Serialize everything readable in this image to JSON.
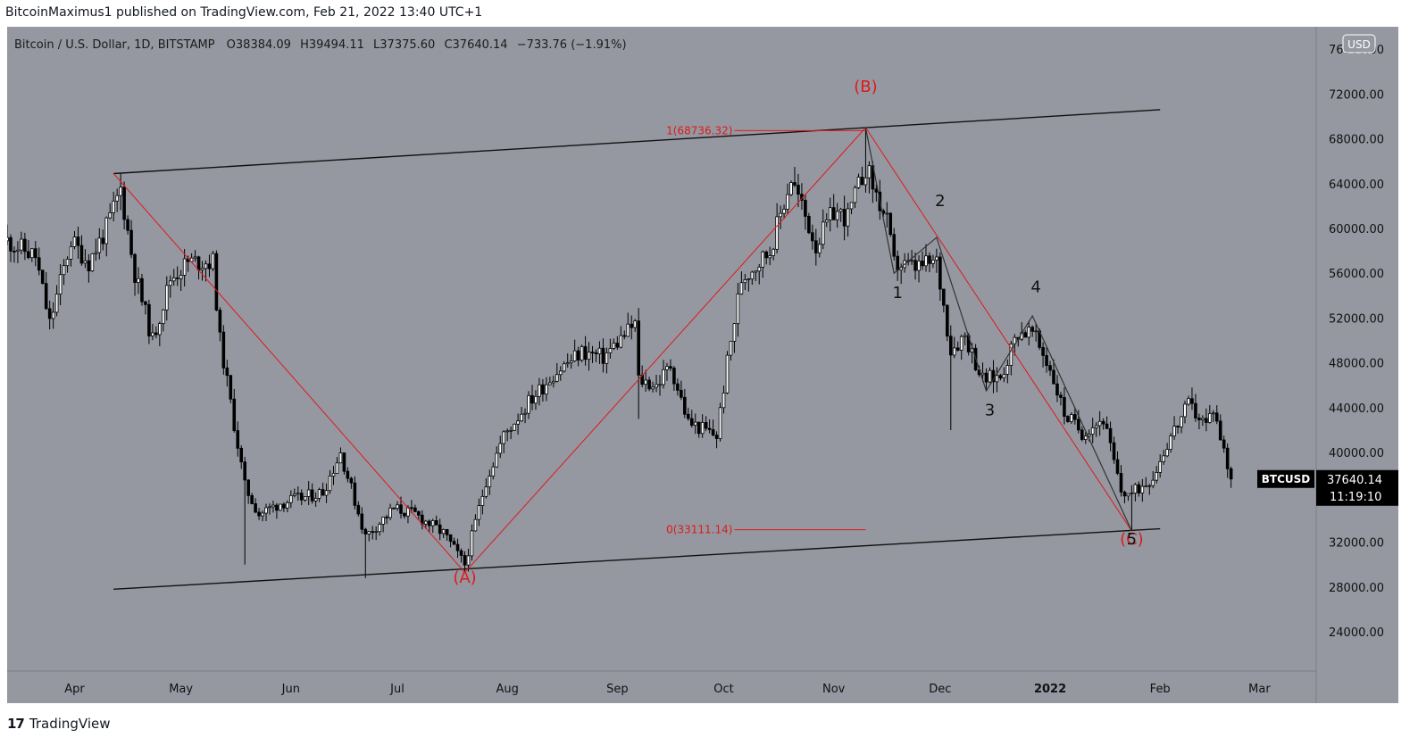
{
  "header": {
    "published_line": "BitcoinMaximus1 published on TradingView.com, Feb 21, 2022 13:40 UTC+1"
  },
  "footer": {
    "logo_mark": "17",
    "brand": "TradingView"
  },
  "colors": {
    "plot_bg": "#9598a1",
    "axis_bg": "#9598a1",
    "candle": "#000000",
    "candle_up_body": "#ffffff",
    "annotation_red": "#e01919",
    "line_black": "#111111",
    "label_bg": "#000000"
  },
  "chart_data": {
    "type": "candlestick",
    "symbol_line": {
      "name": "Bitcoin / U.S. Dollar, 1D, BITSTAMP",
      "o_label": "O",
      "o": "38384.09",
      "h_label": "H",
      "h": "39494.11",
      "l_label": "L",
      "l": "37375.60",
      "c_label": "C",
      "c": "37640.14",
      "change": "−733.76 (−1.91%)"
    },
    "currency_badge": "USD",
    "y_ticks": [
      "76000.00",
      "72000.00",
      "68000.00",
      "64000.00",
      "60000.00",
      "56000.00",
      "52000.00",
      "48000.00",
      "44000.00",
      "40000.00",
      "36000.00",
      "32000.00",
      "28000.00",
      "24000.00"
    ],
    "ylim": [
      20500,
      78000
    ],
    "x_ticks": [
      {
        "date": "2021-04-01",
        "label": "Apr"
      },
      {
        "date": "2021-05-01",
        "label": "May"
      },
      {
        "date": "2021-06-01",
        "label": "Jun"
      },
      {
        "date": "2021-07-01",
        "label": "Jul"
      },
      {
        "date": "2021-08-01",
        "label": "Aug"
      },
      {
        "date": "2021-09-01",
        "label": "Sep"
      },
      {
        "date": "2021-10-01",
        "label": "Oct"
      },
      {
        "date": "2021-11-01",
        "label": "Nov"
      },
      {
        "date": "2021-12-01",
        "label": "Dec"
      },
      {
        "date": "2022-01-01",
        "label": "2022"
      },
      {
        "date": "2022-02-01",
        "label": "Feb"
      },
      {
        "date": "2022-03-01",
        "label": "Mar"
      }
    ],
    "xlim": [
      "2021-03-13",
      "2022-03-17"
    ],
    "price_label": {
      "symbol": "BTCUSD",
      "price": "37640.14",
      "countdown": "11:19:10",
      "value": 37640.14
    },
    "anchors": [
      {
        "date": "2021-03-13",
        "price": 58900
      },
      {
        "date": "2021-03-21",
        "price": 57500
      },
      {
        "date": "2021-03-25",
        "price": 51500
      },
      {
        "date": "2021-03-31",
        "price": 58900
      },
      {
        "date": "2021-04-05",
        "price": 57000
      },
      {
        "date": "2021-04-10",
        "price": 60000
      },
      {
        "date": "2021-04-14",
        "price": 63500
      },
      {
        "date": "2021-04-18",
        "price": 56000
      },
      {
        "date": "2021-04-23",
        "price": 50000
      },
      {
        "date": "2021-04-28",
        "price": 55500
      },
      {
        "date": "2021-05-03",
        "price": 57000
      },
      {
        "date": "2021-05-10",
        "price": 57000
      },
      {
        "date": "2021-05-12",
        "price": 50000
      },
      {
        "date": "2021-05-19",
        "price": 37000
      },
      {
        "date": "2021-05-23",
        "price": 34500
      },
      {
        "date": "2021-05-29",
        "price": 35500
      },
      {
        "date": "2021-06-05",
        "price": 36000
      },
      {
        "date": "2021-06-10",
        "price": 36500
      },
      {
        "date": "2021-06-15",
        "price": 40000
      },
      {
        "date": "2021-06-22",
        "price": 32500
      },
      {
        "date": "2021-06-30",
        "price": 35000
      },
      {
        "date": "2021-07-06",
        "price": 34500
      },
      {
        "date": "2021-07-14",
        "price": 32800
      },
      {
        "date": "2021-07-20",
        "price": 30000
      },
      {
        "date": "2021-07-26",
        "price": 37500
      },
      {
        "date": "2021-07-31",
        "price": 41500
      },
      {
        "date": "2021-08-07",
        "price": 44500
      },
      {
        "date": "2021-08-14",
        "price": 47000
      },
      {
        "date": "2021-08-22",
        "price": 49000
      },
      {
        "date": "2021-08-28",
        "price": 48500
      },
      {
        "date": "2021-09-06",
        "price": 51500
      },
      {
        "date": "2021-09-07",
        "price": 46500
      },
      {
        "date": "2021-09-12",
        "price": 46000
      },
      {
        "date": "2021-09-16",
        "price": 47800
      },
      {
        "date": "2021-09-21",
        "price": 42700
      },
      {
        "date": "2021-09-29",
        "price": 41500
      },
      {
        "date": "2021-10-02",
        "price": 48000
      },
      {
        "date": "2021-10-06",
        "price": 55500
      },
      {
        "date": "2021-10-14",
        "price": 58000
      },
      {
        "date": "2021-10-20",
        "price": 64500
      },
      {
        "date": "2021-10-27",
        "price": 58500
      },
      {
        "date": "2021-11-01",
        "price": 61500
      },
      {
        "date": "2021-11-05",
        "price": 61000
      },
      {
        "date": "2021-11-10",
        "price": 65500
      },
      {
        "date": "2021-11-16",
        "price": 60500
      },
      {
        "date": "2021-11-18",
        "price": 56800
      },
      {
        "date": "2021-11-24",
        "price": 56500
      },
      {
        "date": "2021-11-30",
        "price": 57000
      },
      {
        "date": "2021-12-04",
        "price": 49200
      },
      {
        "date": "2021-12-08",
        "price": 50500
      },
      {
        "date": "2021-12-13",
        "price": 46500
      },
      {
        "date": "2021-12-18",
        "price": 46800
      },
      {
        "date": "2021-12-23",
        "price": 50800
      },
      {
        "date": "2021-12-27",
        "price": 50700
      },
      {
        "date": "2022-01-01",
        "price": 47500
      },
      {
        "date": "2022-01-05",
        "price": 43500
      },
      {
        "date": "2022-01-10",
        "price": 41800
      },
      {
        "date": "2022-01-16",
        "price": 43000
      },
      {
        "date": "2022-01-21",
        "price": 36500
      },
      {
        "date": "2022-01-24",
        "price": 36300
      },
      {
        "date": "2022-01-30",
        "price": 37900
      },
      {
        "date": "2022-02-04",
        "price": 41500
      },
      {
        "date": "2022-02-09",
        "price": 44200
      },
      {
        "date": "2022-02-14",
        "price": 42500
      },
      {
        "date": "2022-02-16",
        "price": 44000
      },
      {
        "date": "2022-02-21",
        "price": 37640
      }
    ],
    "spikes": [
      {
        "date": "2021-04-14",
        "high": 64900
      },
      {
        "date": "2021-05-19",
        "low": 30000
      },
      {
        "date": "2021-06-22",
        "low": 28800
      },
      {
        "date": "2021-07-20",
        "low": 29300
      },
      {
        "date": "2021-09-07",
        "high": 52900,
        "low": 43000
      },
      {
        "date": "2021-11-10",
        "high": 69000
      },
      {
        "date": "2021-12-04",
        "low": 42000
      },
      {
        "date": "2022-01-24",
        "low": 33000
      },
      {
        "date": "2022-02-10",
        "high": 45800
      }
    ],
    "channel_lines": [
      {
        "start": {
          "date": "2021-04-12",
          "price": 64900
        },
        "end": {
          "date": "2022-02-01",
          "price": 70600
        }
      },
      {
        "start": {
          "date": "2021-04-12",
          "price": 27800
        },
        "end": {
          "date": "2022-02-01",
          "price": 33200
        }
      }
    ],
    "abc_lines": [
      {
        "start": {
          "date": "2021-04-12",
          "price": 64900
        },
        "end": {
          "date": "2021-07-20",
          "price": 29300
        }
      },
      {
        "start": {
          "date": "2021-07-20",
          "price": 29300
        },
        "end": {
          "date": "2021-11-10",
          "price": 69000
        }
      },
      {
        "start": {
          "date": "2021-11-10",
          "price": 69000
        },
        "end": {
          "date": "2022-01-24",
          "price": 33000
        }
      }
    ],
    "fib_levels": [
      {
        "label": "1(68736.32)",
        "price": 68736.32,
        "start": "2021-10-04",
        "end": "2021-11-10"
      },
      {
        "label": "0(33111.14)",
        "price": 33111.14,
        "start": "2021-10-04",
        "end": "2021-11-10"
      }
    ],
    "wave_path": [
      {
        "date": "2021-11-10",
        "price": 69000
      },
      {
        "date": "2021-11-18",
        "price": 56000
      },
      {
        "date": "2021-11-30",
        "price": 59200
      },
      {
        "date": "2021-12-14",
        "price": 45500
      },
      {
        "date": "2021-12-27",
        "price": 52200
      },
      {
        "date": "2022-01-24",
        "price": 33000
      }
    ],
    "wave_labels": [
      {
        "text": "(A)",
        "date": "2021-07-20",
        "price": 28400,
        "color": "red"
      },
      {
        "text": "(B)",
        "date": "2021-11-10",
        "price": 72200,
        "color": "red"
      },
      {
        "text": "(C)",
        "date": "2022-01-24",
        "price": 31800,
        "color": "red"
      },
      {
        "text": "1",
        "date": "2021-11-19",
        "price": 53800,
        "color": "black"
      },
      {
        "text": "2",
        "date": "2021-12-01",
        "price": 62000,
        "color": "black"
      },
      {
        "text": "3",
        "date": "2021-12-15",
        "price": 43300,
        "color": "black"
      },
      {
        "text": "4",
        "date": "2021-12-28",
        "price": 54300,
        "color": "black"
      },
      {
        "text": "5",
        "date": "2022-01-24",
        "price": 31800,
        "color": "black"
      }
    ]
  }
}
